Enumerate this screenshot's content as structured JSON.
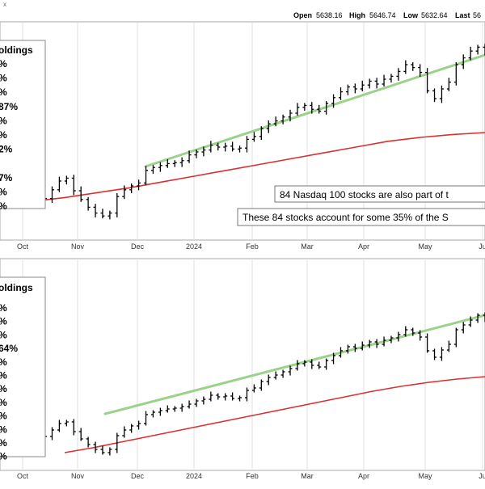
{
  "header": {
    "corner_mark": "x",
    "open_label": "Open",
    "open_value": "5638.16",
    "high_label": "High",
    "high_value": "5646.74",
    "low_label": "Low",
    "low_value": "5632.64",
    "last_label": "Last",
    "last_value": "56"
  },
  "colors": {
    "price_bars": "#000000",
    "trend_line": "#9ad28a",
    "moving_average": "#d93030",
    "panel_background": "#ffffff",
    "grid": "#e2e2e2"
  },
  "chart_data": [
    {
      "type": "line",
      "panel": "top",
      "x_tick_labels": [
        "Oct",
        "Nov",
        "Dec",
        "2024",
        "Feb",
        "Mar",
        "Apr",
        "May",
        "Ju"
      ],
      "legend": {
        "title": "oldings",
        "rows": [
          "%",
          "%",
          "%",
          "87%",
          "%",
          "%",
          "2%",
          "",
          "7%",
          "%",
          "%"
        ]
      },
      "annotations": [
        "84 Nasdaq 100 stocks are also part of t",
        "These 84 stocks account for some 35% of the S"
      ],
      "series": [
        {
          "role": "price",
          "values": [
            62,
            57,
            50,
            41,
            39,
            38,
            37,
            46,
            55,
            58,
            45,
            36,
            28,
            22,
            19,
            22,
            39,
            46,
            50,
            53,
            66,
            69,
            71,
            73,
            74,
            76,
            82,
            85,
            87,
            92,
            90,
            91,
            88,
            89,
            98,
            101,
            109,
            114,
            117,
            121,
            125,
            131,
            133,
            129,
            127,
            135,
            141,
            147,
            152,
            150,
            154,
            158,
            155,
            160,
            163,
            168,
            175,
            172,
            167,
            148,
            140,
            150,
            157,
            175,
            182,
            189,
            193,
            189
          ]
        },
        {
          "role": "trend",
          "values": [
            70,
            185
          ]
        },
        {
          "role": "moving_average",
          "values": [
            30,
            34,
            38,
            43,
            48,
            54,
            60,
            66,
            72,
            78,
            84,
            90,
            96,
            100,
            103,
            105
          ]
        }
      ]
    },
    {
      "type": "line",
      "panel": "bottom",
      "x_tick_labels": [
        "Oct",
        "Nov",
        "Dec",
        "2024",
        "Feb",
        "Mar",
        "Apr",
        "May",
        "Ju"
      ],
      "legend": {
        "title": "oldings",
        "rows": [
          "%",
          "%",
          "%",
          "64%",
          "%",
          "%",
          "%",
          "%",
          "%",
          "%",
          "%",
          "%"
        ]
      },
      "annotations": [],
      "series": [
        {
          "role": "price",
          "values": [
            62,
            56,
            49,
            44,
            42,
            41,
            40,
            48,
            56,
            58,
            46,
            37,
            30,
            24,
            20,
            24,
            41,
            48,
            53,
            56,
            67,
            70,
            72,
            74,
            75,
            77,
            80,
            84,
            86,
            91,
            89,
            90,
            87,
            88,
            97,
            100,
            108,
            113,
            116,
            120,
            124,
            130,
            132,
            128,
            126,
            134,
            140,
            146,
            151,
            149,
            153,
            157,
            154,
            159,
            162,
            166,
            172,
            168,
            163,
            146,
            138,
            147,
            154,
            172,
            178,
            184,
            190,
            186
          ]
        },
        {
          "role": "trend",
          "values": [
            68,
            190
          ]
        },
        {
          "role": "moving_average",
          "values": [
            20,
            26,
            33,
            40,
            47,
            54,
            61,
            68,
            75,
            82,
            89,
            96,
            102,
            107,
            111,
            114
          ]
        }
      ]
    }
  ]
}
